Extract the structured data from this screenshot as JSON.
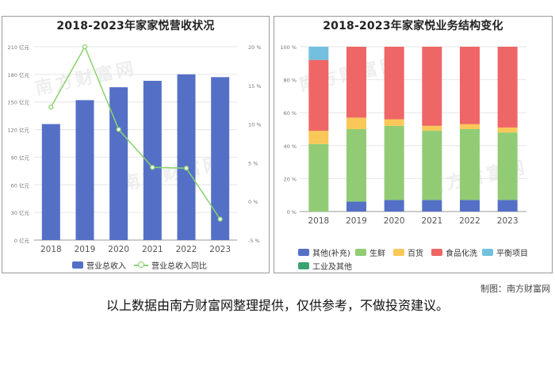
{
  "charts": {
    "left": {
      "title": "2018-2023年家家悦营收状况",
      "legend": [
        "营业总收入",
        "营业总收入同比"
      ]
    },
    "right": {
      "title": "2018-2023年家家悦业务结构变化",
      "legend": [
        "其他(补充)",
        "生鲜",
        "百货",
        "食品化洗",
        "平衡项目",
        "工业及其他"
      ]
    }
  },
  "watermark_text": "南方财富网",
  "credit": "制图：南方财富网",
  "disclaimer": "以上数据由南方财富网整理提供，仅供参考，不做投资建议。",
  "colors": {
    "bar": "#5470c6",
    "line": "#8ad26d",
    "others": "#5470c6",
    "fresh": "#91cc75",
    "general": "#fac858",
    "food": "#ee6666",
    "balance": "#73c0de",
    "industry": "#3ba272"
  },
  "chart_data": [
    {
      "type": "bar+line",
      "title": "2018-2023年家家悦营收状况",
      "categories": [
        "2018",
        "2019",
        "2020",
        "2021",
        "2022",
        "2023"
      ],
      "series": [
        {
          "name": "营业总收入",
          "type": "bar",
          "axis": "left",
          "values": [
            126,
            152,
            166,
            173,
            180,
            177
          ]
        },
        {
          "name": "营业总收入同比",
          "type": "line",
          "axis": "right",
          "values": [
            12.2,
            20.0,
            9.3,
            4.4,
            4.3,
            -2.3
          ]
        }
      ],
      "y_left": {
        "min": 0,
        "max": 210,
        "ticks": [
          0,
          30,
          60,
          90,
          120,
          150,
          180,
          210
        ],
        "labels": [
          "0 亿元",
          "30 亿元",
          "60 亿元",
          "90 亿元",
          "120 亿元",
          "150 亿元",
          "180 亿元",
          "210 亿元"
        ]
      },
      "y_right": {
        "min": -5,
        "max": 20,
        "ticks": [
          -5,
          0,
          5,
          10,
          15,
          20
        ],
        "labels": [
          "-5 %",
          "0 %",
          "5 %",
          "10 %",
          "15 %",
          "20 %"
        ]
      }
    },
    {
      "type": "stacked-bar-percent",
      "title": "2018-2023年家家悦业务结构变化",
      "categories": [
        "2018",
        "2019",
        "2020",
        "2021",
        "2022",
        "2023"
      ],
      "series": [
        {
          "name": "其他(补充)",
          "values": [
            0,
            6,
            7,
            7,
            7,
            7
          ]
        },
        {
          "name": "生鲜",
          "values": [
            41,
            44,
            45,
            42,
            43,
            41
          ]
        },
        {
          "name": "百货",
          "values": [
            8,
            7,
            4,
            3,
            3,
            3
          ]
        },
        {
          "name": "食品化洗",
          "values": [
            43,
            43,
            44,
            48,
            47,
            49
          ]
        },
        {
          "name": "平衡项目",
          "values": [
            8,
            0,
            0,
            0,
            0,
            0
          ]
        },
        {
          "name": "工业及其他",
          "values": [
            0,
            0,
            0,
            0,
            0,
            0
          ]
        }
      ],
      "y": {
        "min": 0,
        "max": 100,
        "ticks": [
          0,
          20,
          40,
          60,
          80,
          100
        ],
        "labels": [
          "0 %",
          "20 %",
          "40 %",
          "60 %",
          "80 %",
          "100 %"
        ]
      }
    }
  ]
}
